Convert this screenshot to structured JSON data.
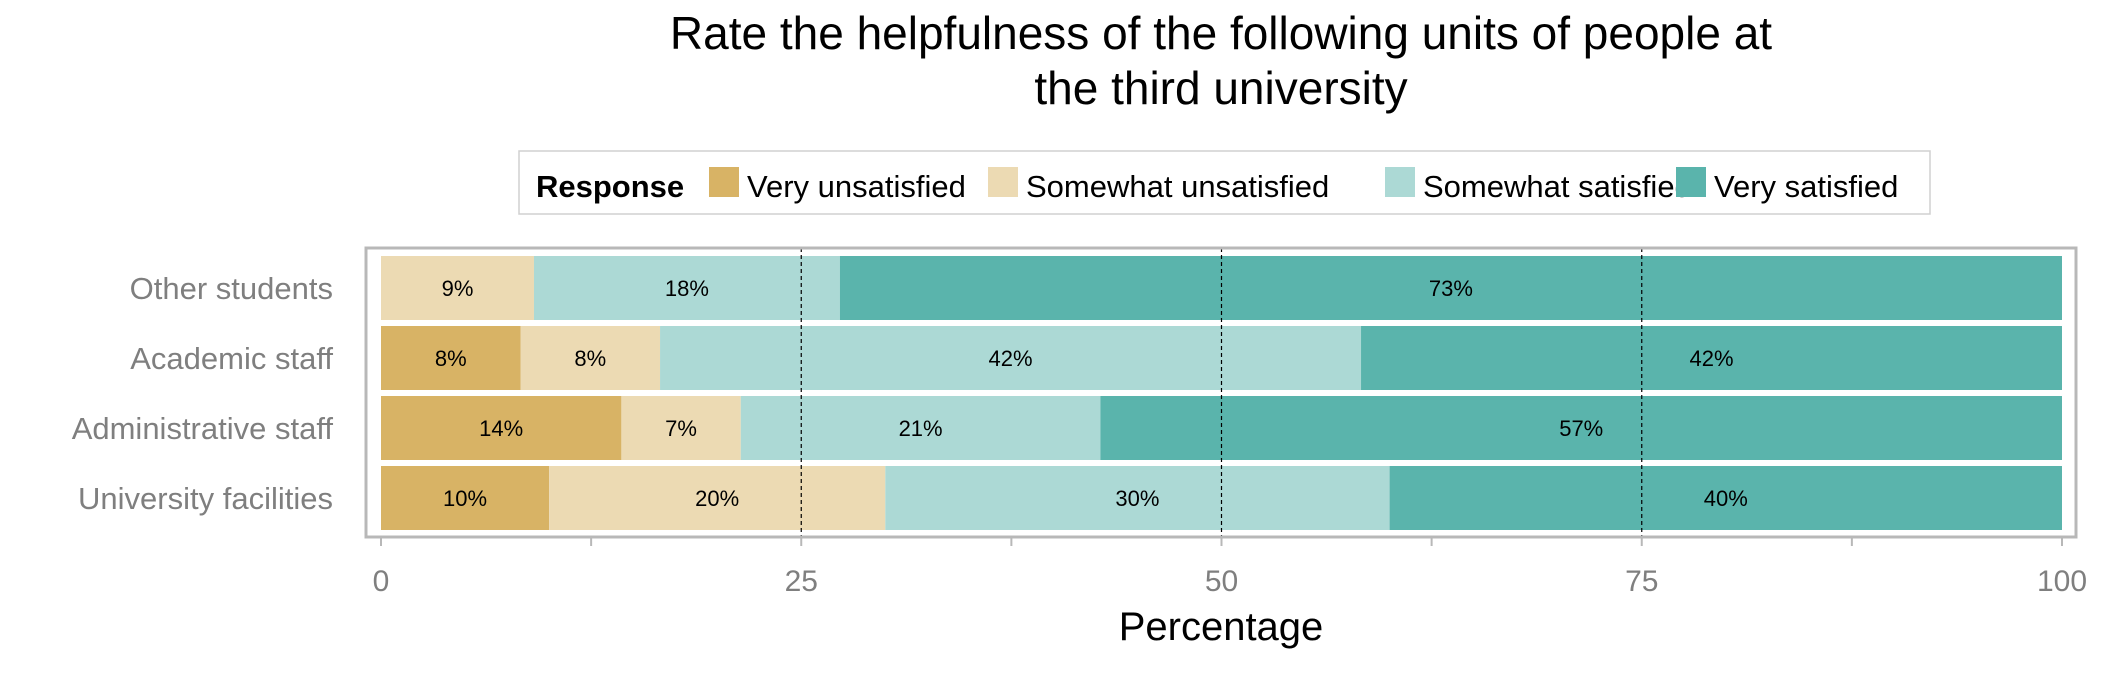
{
  "chart_data": {
    "type": "bar",
    "orientation": "horizontal",
    "stacked": true,
    "title_lines": [
      "Rate the helpfulness of the following units of people at",
      "the third university"
    ],
    "xlabel": "Percentage",
    "ylabel": "",
    "xlim": [
      0,
      100
    ],
    "xticks": [
      0,
      25,
      50,
      75,
      100
    ],
    "reference_lines": [
      25,
      50,
      75
    ],
    "legend": {
      "title": "Response",
      "position": "top"
    },
    "categories": [
      "Other students",
      "Academic staff",
      "Administrative staff",
      "University facilities"
    ],
    "series": [
      {
        "name": "Very unsatisfied",
        "color": "#d8b365",
        "values": [
          0,
          8.3,
          14.3,
          10
        ],
        "labels": [
          "",
          "8%",
          "14%",
          "10%"
        ]
      },
      {
        "name": "Somewhat unsatisfied",
        "color": "#ecdab3",
        "values": [
          9.1,
          8.3,
          7.1,
          20
        ],
        "labels": [
          "9%",
          "8%",
          "7%",
          "20%"
        ]
      },
      {
        "name": "Somewhat satisfied",
        "color": "#acd9d5",
        "values": [
          18.2,
          41.7,
          21.4,
          30
        ],
        "labels": [
          "18%",
          "42%",
          "21%",
          "30%"
        ]
      },
      {
        "name": "Very satisfied",
        "color": "#5ab4ac",
        "values": [
          72.7,
          41.7,
          57.2,
          40
        ],
        "labels": [
          "73%",
          "42%",
          "57%",
          "40%"
        ]
      }
    ]
  }
}
